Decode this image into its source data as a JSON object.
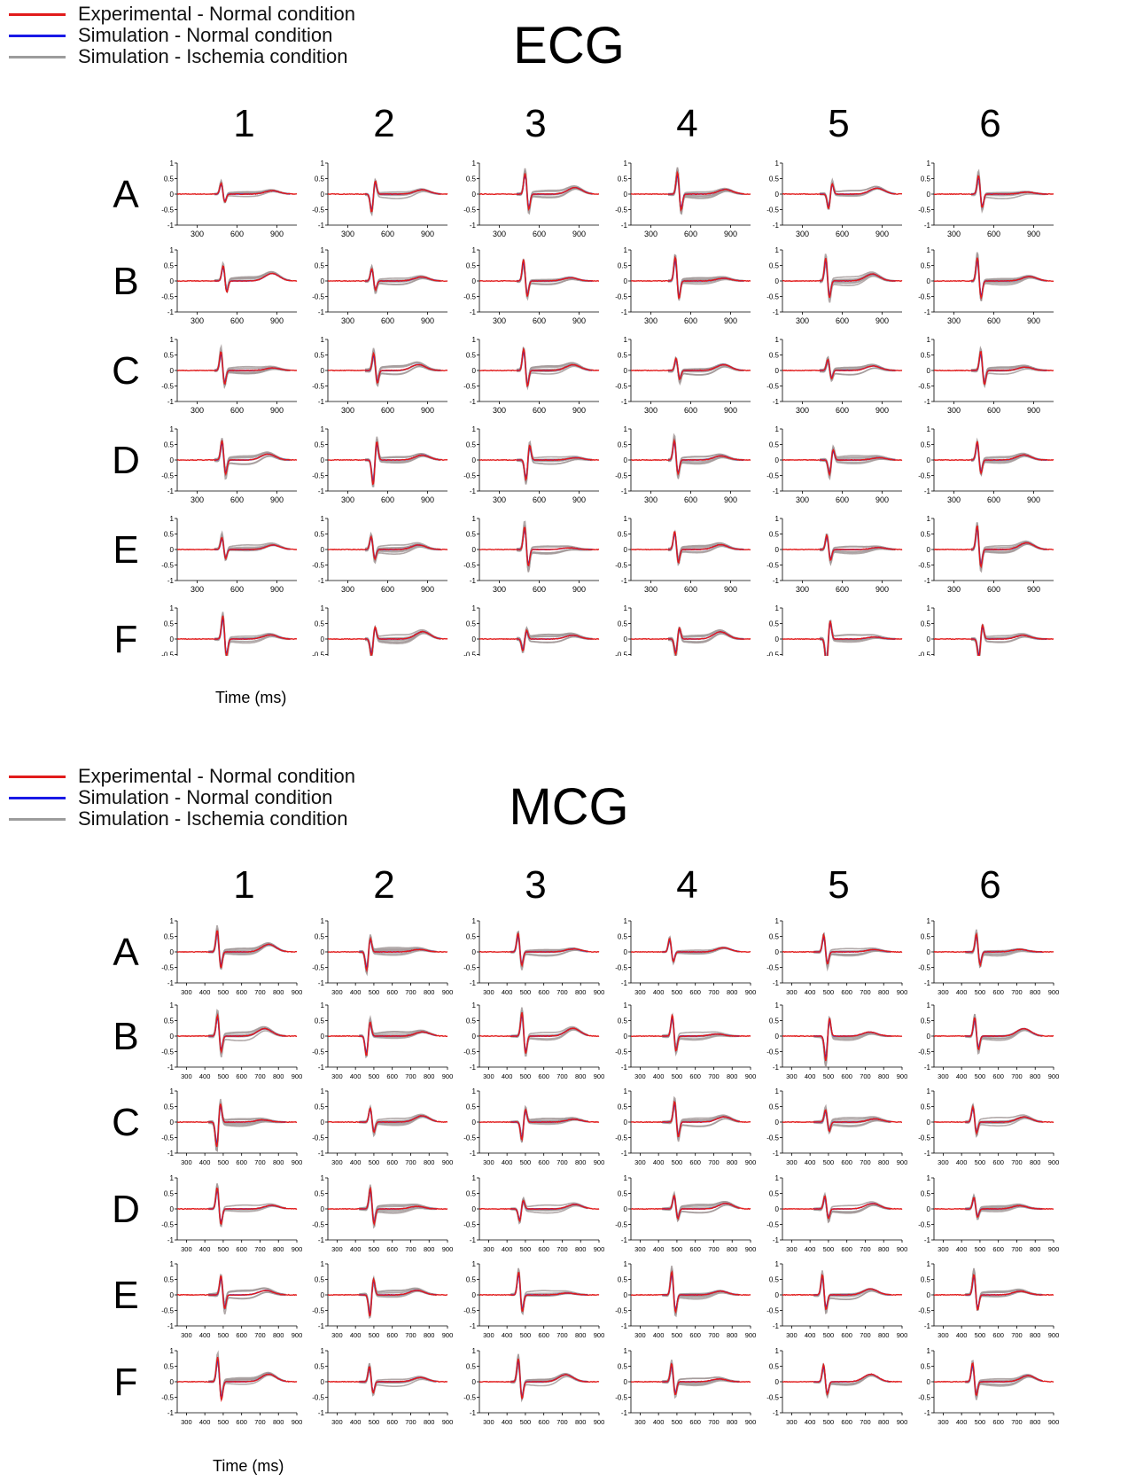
{
  "legend": [
    {
      "label": "Experimental - Normal condition",
      "color": "#e11b1b"
    },
    {
      "label": "Simulation - Normal condition",
      "color": "#1a1ae6"
    },
    {
      "label": "Simulation - Ischemia condition",
      "color": "#9c9c9c"
    }
  ],
  "chart_data": [
    {
      "type": "line",
      "title": "ECG",
      "columns": [
        "1",
        "2",
        "3",
        "4",
        "5",
        "6"
      ],
      "rows": [
        "A",
        "B",
        "C",
        "D",
        "E",
        "F"
      ],
      "xlabel": "Time (ms)",
      "xlim": [
        150,
        1050
      ],
      "xticks": [
        300,
        600,
        900
      ],
      "ylim": [
        -1,
        1
      ],
      "yticks": [
        1,
        0.5,
        0,
        -0.5,
        -1
      ],
      "ytick_labels": [
        "1",
        "0.5",
        "0",
        "-0.5",
        "-1"
      ],
      "series": [
        "Experimental - Normal condition",
        "Simulation - Normal condition",
        "Simulation - Ischemia condition"
      ],
      "approx_waveform": {
        "experimental_x_range": [
          150,
          1050
        ],
        "simulation_x_range": [
          430,
          1000
        ],
        "qrs_time": 490,
        "t_wave_time": 850
      }
    },
    {
      "type": "line",
      "title": "MCG",
      "columns": [
        "1",
        "2",
        "3",
        "4",
        "5",
        "6"
      ],
      "rows": [
        "A",
        "B",
        "C",
        "D",
        "E",
        "F"
      ],
      "xlabel": "Time (ms)",
      "xlim": [
        250,
        900
      ],
      "xticks": [
        300,
        400,
        500,
        600,
        700,
        800,
        900
      ],
      "ylim": [
        -1,
        1
      ],
      "yticks": [
        1,
        0.5,
        0,
        -0.5,
        -1
      ],
      "ytick_labels": [
        "1",
        "0.5",
        "0",
        "-0.5",
        "-1"
      ],
      "series": [
        "Experimental - Normal condition",
        "Simulation - Normal condition",
        "Simulation - Ischemia condition"
      ],
      "approx_waveform": {
        "experimental_x_range": [
          250,
          900
        ],
        "simulation_x_range": [
          420,
          840
        ],
        "qrs_time": 475,
        "t_wave_time": 740
      }
    }
  ]
}
